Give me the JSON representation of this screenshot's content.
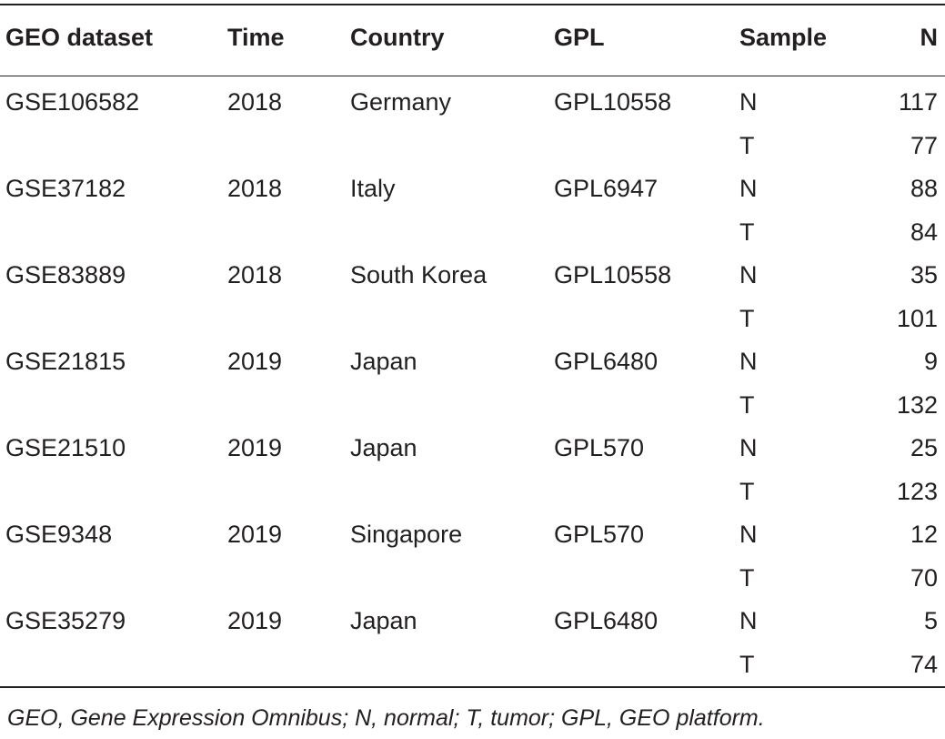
{
  "table": {
    "headers": [
      "GEO dataset",
      "Time",
      "Country",
      "GPL",
      "Sample",
      "N"
    ],
    "rows": [
      {
        "geo": "GSE106582",
        "time": "2018",
        "country": "Germany",
        "gpl": "GPL10558",
        "samples": [
          {
            "sample": "N",
            "n": "117"
          },
          {
            "sample": "T",
            "n": "77"
          }
        ]
      },
      {
        "geo": "GSE37182",
        "time": "2018",
        "country": "Italy",
        "gpl": "GPL6947",
        "samples": [
          {
            "sample": "N",
            "n": "88"
          },
          {
            "sample": "T",
            "n": "84"
          }
        ]
      },
      {
        "geo": "GSE83889",
        "time": "2018",
        "country": "South Korea",
        "gpl": "GPL10558",
        "samples": [
          {
            "sample": "N",
            "n": "35"
          },
          {
            "sample": "T",
            "n": "101"
          }
        ]
      },
      {
        "geo": "GSE21815",
        "time": "2019",
        "country": "Japan",
        "gpl": "GPL6480",
        "samples": [
          {
            "sample": "N",
            "n": "9"
          },
          {
            "sample": "T",
            "n": "132"
          }
        ]
      },
      {
        "geo": "GSE21510",
        "time": "2019",
        "country": "Japan",
        "gpl": "GPL570",
        "samples": [
          {
            "sample": "N",
            "n": "25"
          },
          {
            "sample": "T",
            "n": "123"
          }
        ]
      },
      {
        "geo": "GSE9348",
        "time": "2019",
        "country": "Singapore",
        "gpl": "GPL570",
        "samples": [
          {
            "sample": "N",
            "n": "12"
          },
          {
            "sample": "T",
            "n": "70"
          }
        ]
      },
      {
        "geo": "GSE35279",
        "time": "2019",
        "country": "Japan",
        "gpl": "GPL6480",
        "samples": [
          {
            "sample": "N",
            "n": "5"
          },
          {
            "sample": "T",
            "n": "74"
          }
        ]
      }
    ]
  },
  "footnote": "GEO, Gene Expression Omnibus; N, normal; T, tumor; GPL, GEO platform."
}
